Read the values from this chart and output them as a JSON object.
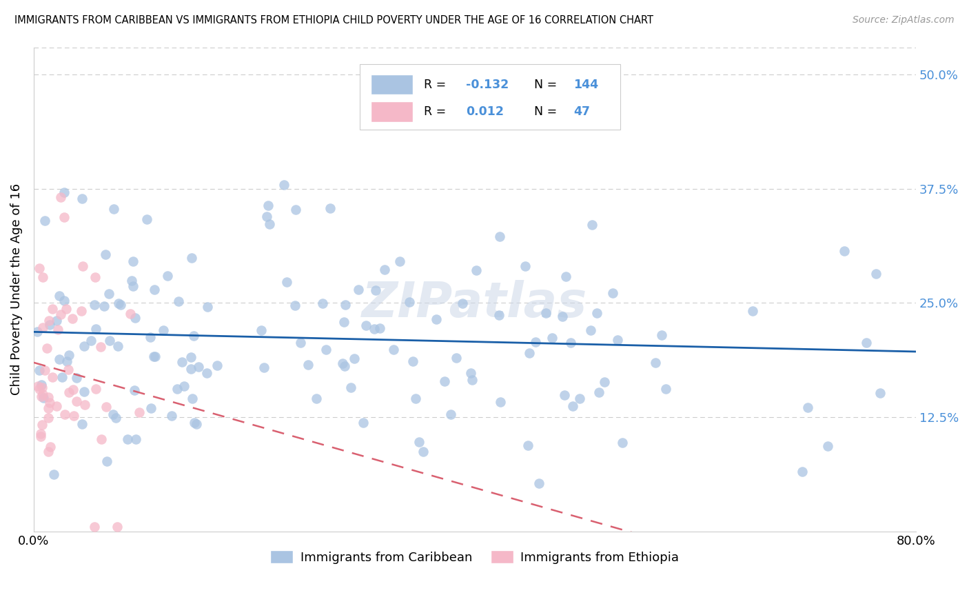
{
  "title": "IMMIGRANTS FROM CARIBBEAN VS IMMIGRANTS FROM ETHIOPIA CHILD POVERTY UNDER THE AGE OF 16 CORRELATION CHART",
  "source": "Source: ZipAtlas.com",
  "ylabel_label": "Child Poverty Under the Age of 16",
  "caribbean_color": "#aac4e2",
  "ethiopia_color": "#f5b8c8",
  "line_caribbean_color": "#1a5fa8",
  "line_ethiopia_color": "#d96070",
  "watermark": "ZIPatlas",
  "xlim": [
    0.0,
    0.8
  ],
  "ylim": [
    0.0,
    0.53
  ],
  "y_tick_vals": [
    0.125,
    0.25,
    0.375,
    0.5
  ],
  "y_tick_labels": [
    "12.5%",
    "25.0%",
    "37.5%",
    "50.0%"
  ],
  "carib_r": "-0.132",
  "carib_n": "144",
  "eth_r": "0.012",
  "eth_n": "47",
  "carib_n_int": 144,
  "eth_n_int": 47,
  "carib_seed": 42,
  "eth_seed": 99
}
